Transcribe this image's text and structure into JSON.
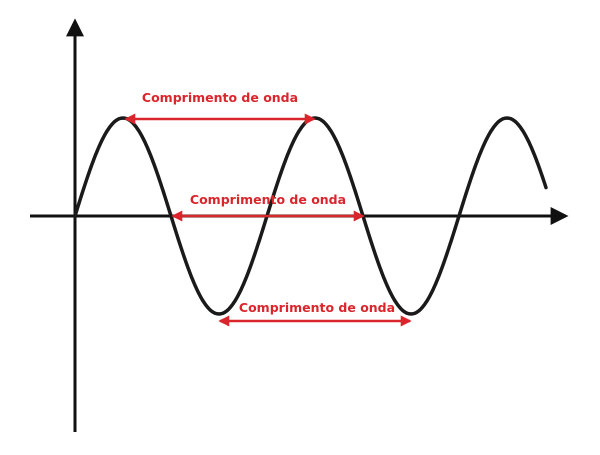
{
  "diagram": {
    "colors": {
      "axis": "#111111",
      "wave": "#1a1a1a",
      "annotation": "#d9262c",
      "background": "#ffffff"
    },
    "wavelength_markers": [
      {
        "id": "peak",
        "label": "Comprimento de onda"
      },
      {
        "id": "center",
        "label": "Comprimento de onda"
      },
      {
        "id": "trough",
        "label": "Comprimento de onda"
      }
    ]
  }
}
